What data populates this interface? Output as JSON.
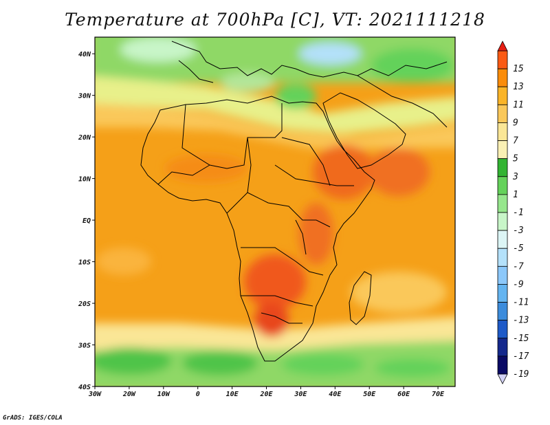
{
  "title": "Temperature at 700hPa [C], VT: 2021111218",
  "credit": "GrADS: IGES/COLA",
  "map": {
    "lon_labels": [
      "30W",
      "20W",
      "10W",
      "0",
      "10E",
      "20E",
      "30E",
      "40E",
      "50E",
      "60E",
      "70E"
    ],
    "lat_labels": [
      "40N",
      "30N",
      "20N",
      "10N",
      "EQ",
      "10S",
      "20S",
      "30S",
      "40S"
    ],
    "lon_range": [
      -30,
      75
    ],
    "lat_range": [
      -40,
      44
    ]
  },
  "colorbar": {
    "labels": [
      "15",
      "13",
      "11",
      "9",
      "7",
      "5",
      "3",
      "1",
      "-1",
      "-3",
      "-5",
      "-7",
      "-9",
      "-11",
      "-13",
      "-15",
      "-17",
      "-19"
    ],
    "colors": [
      "#f0321e",
      "#fa5a14",
      "#fa8c0a",
      "#fab428",
      "#fac85a",
      "#fae696",
      "#faf0b4",
      "#32b432",
      "#64d25a",
      "#96e68c",
      "#c8f5c8",
      "#dcf5f5",
      "#b4e1fa",
      "#8cc8fa",
      "#64b4f0",
      "#3c8cdc",
      "#1e5ac8",
      "#14288c",
      "#0a0a64",
      "#d2d2f5"
    ],
    "colors_order": "top-to-bottom",
    "top_arrow_color": "#e61e14",
    "bottom_arrow_color": "#d2d2f5"
  }
}
